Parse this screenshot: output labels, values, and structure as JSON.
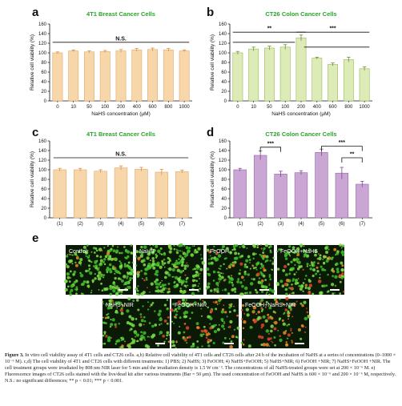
{
  "figure": {
    "caption_label": "Figure 3.",
    "caption_text": " In vitro cell viability assay of 4T1 cells and CT26 cells. a,b) Relative cell viability of 4T1 cells and CT26 cells after 24 h of the incubation of NaHS at a series of concentrations (0–1000 × 10⁻⁶ M). c,d) The cell viability of 4T1 and CT26 cells with different treatments: 1) PBS; 2) NaHS; 3) FeOOH; 4) NaHS+FeOOH; 5) NaHS+NIR; 6) FeOOH +NIR; 7) NaHS+FeOOH +NIR. The cell treatment groups were irradiated by 808 nm NIR laser for 5 min and the irradiation density is 1.5 W cm⁻². The concentrations of all NaHS-treated groups were set at 200 × 10⁻⁶ M. e) Fluorescence images of CT26 cells stained with the live/dead kit after various treatments (Bar = 50 μm). The used concentration of FeOOH and NaHS is 600 × 10⁻⁶ and 200 × 10⁻⁶ M, respectively. N.S.: no significant differences; ** p < 0.01; *** p < 0.001."
  },
  "colors": {
    "orange": "#f7d7aa",
    "orange_stroke": "#e0a86b",
    "green": "#ddecb6",
    "green_stroke": "#9bb761",
    "purple": "#c9a6d4",
    "purple_stroke": "#9467a8",
    "error_orange": "#d98f3c",
    "error_green": "#6e8f35",
    "error_purple": "#7b4a8f",
    "title_green": "#2aa32a"
  },
  "chart_data": [
    {
      "panel": "a",
      "type": "bar",
      "title": "4T1 Breast Cancer Cells",
      "xlabel": "NaHS concentration (μM)",
      "ylabel": "Relative cell viability (%)",
      "categories": [
        "0",
        "10",
        "50",
        "100",
        "200",
        "400",
        "600",
        "800",
        "1000"
      ],
      "values": [
        100,
        104,
        102,
        103,
        104,
        106,
        107,
        106,
        104
      ],
      "errors": [
        2,
        2,
        2,
        2,
        3,
        3,
        3,
        3,
        2
      ],
      "ylim": [
        0,
        160
      ],
      "yticks": [
        0,
        20,
        40,
        60,
        80,
        100,
        120,
        140,
        160
      ],
      "color": "orange",
      "annotations": [
        {
          "text": "N.S.",
          "type": "line",
          "from": 0,
          "to": 8,
          "y": 122
        }
      ]
    },
    {
      "panel": "b",
      "type": "bar",
      "title": "CT26 Colon Cancer Cells",
      "xlabel": "NaHS concentration (μM)",
      "ylabel": "Relative cell viability (%)",
      "categories": [
        "0",
        "10",
        "50",
        "100",
        "200",
        "400",
        "600",
        "800",
        "1000"
      ],
      "values": [
        100,
        108,
        110,
        112,
        131,
        89,
        76,
        86,
        67
      ],
      "errors": [
        3,
        4,
        4,
        5,
        6,
        2,
        3,
        5,
        4
      ],
      "ylim": [
        0,
        160
      ],
      "yticks": [
        0,
        20,
        40,
        60,
        80,
        100,
        120,
        140,
        160
      ],
      "color": "green",
      "annotations": [
        {
          "text": "**",
          "type": "line",
          "from": 0,
          "to": 4,
          "y": 143
        },
        {
          "text": "***",
          "type": "line",
          "from": 4,
          "to": 8,
          "y": 143
        },
        {
          "text": "",
          "type": "line",
          "from": 0,
          "to": 3.3,
          "y": 122
        },
        {
          "text": "",
          "type": "line",
          "from": 4.5,
          "to": 8,
          "y": 112
        }
      ]
    },
    {
      "panel": "c",
      "type": "bar",
      "title": "4T1 Breast Cancer Cells",
      "xlabel": "",
      "ylabel": "Relative cell viability (%)",
      "categories": [
        "(1)",
        "(2)",
        "(3)",
        "(4)",
        "(5)",
        "(6)",
        "(7)"
      ],
      "values": [
        100,
        100,
        97,
        104,
        101,
        95,
        96
      ],
      "errors": [
        3,
        3,
        3,
        4,
        4,
        6,
        3
      ],
      "ylim": [
        0,
        160
      ],
      "yticks": [
        0,
        20,
        40,
        60,
        80,
        100,
        120,
        140,
        160
      ],
      "color": "orange",
      "annotations": [
        {
          "text": "N.S.",
          "type": "line",
          "from": 0,
          "to": 6,
          "y": 125
        }
      ]
    },
    {
      "panel": "d",
      "type": "bar",
      "title": "CT26 Colon Cancer Cells",
      "xlabel": "",
      "ylabel": "Relative cell viability (%)",
      "categories": [
        "(1)",
        "(2)",
        "(3)",
        "(4)",
        "(5)",
        "(6)",
        "(7)"
      ],
      "values": [
        100,
        130,
        91,
        94,
        136,
        93,
        70
      ],
      "errors": [
        3,
        9,
        6,
        4,
        7,
        12,
        6
      ],
      "ylim": [
        0,
        160
      ],
      "yticks": [
        0,
        20,
        40,
        60,
        80,
        100,
        120,
        140,
        160
      ],
      "color": "purple",
      "annotations": [
        {
          "text": "***",
          "type": "bracket",
          "from": 1,
          "to": 2,
          "y": 147
        },
        {
          "text": "***",
          "type": "bracket",
          "from": 4,
          "to": 6,
          "y": 149
        },
        {
          "text": "**",
          "type": "bracket",
          "from": 5,
          "to": 6,
          "y": 125
        }
      ]
    }
  ],
  "fluorescence": {
    "panel": "e",
    "images": [
      {
        "label": "Control",
        "density": 0.9,
        "red": 0.04
      },
      {
        "label": "NaHS",
        "density": 1.0,
        "red": 0.05
      },
      {
        "label": "FeOOH",
        "density": 0.85,
        "red": 0.12
      },
      {
        "label": "FeOOH+NaHS",
        "density": 0.75,
        "red": 0.18
      },
      {
        "label": "NaHS+NIR",
        "density": 0.55,
        "red": 0.1
      },
      {
        "label": "FeOOH+NIR",
        "density": 0.55,
        "red": 0.3
      },
      {
        "label": "FeOOH+NaHS+NIR",
        "density": 0.5,
        "red": 0.55
      }
    ]
  }
}
